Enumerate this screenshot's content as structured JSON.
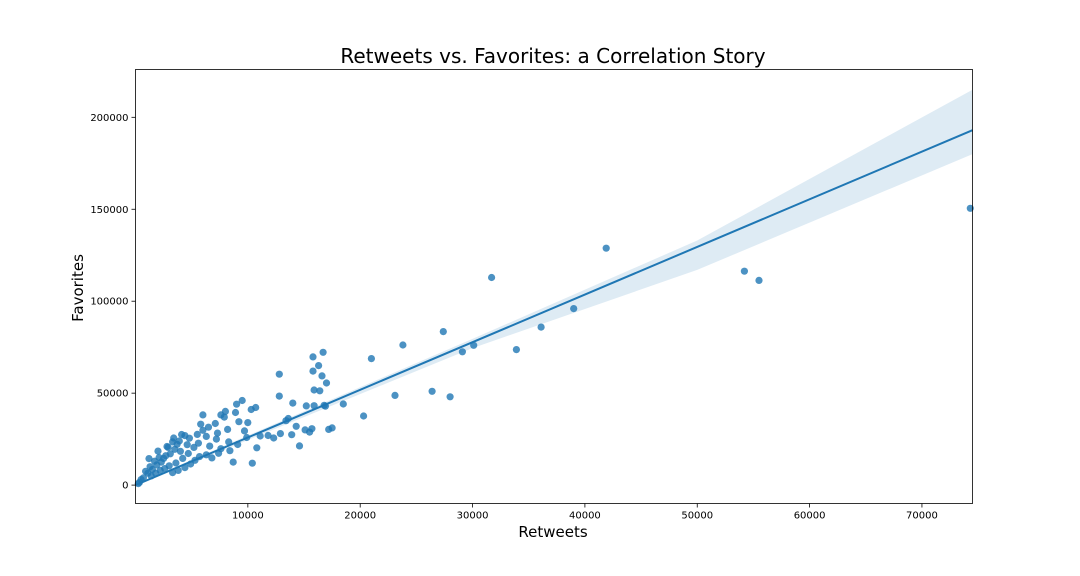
{
  "chart_data": {
    "type": "scatter",
    "title": "Retweets vs. Favorites: a Correlation Story",
    "xlabel": "Retweets",
    "ylabel": "Favorites",
    "xlim": [
      0,
      74500
    ],
    "ylim": [
      -10000,
      226000
    ],
    "xticks": [
      10000,
      20000,
      30000,
      40000,
      50000,
      60000,
      70000
    ],
    "yticks": [
      0,
      50000,
      100000,
      150000,
      200000
    ],
    "grid": false,
    "colors": {
      "points": "#1f77b4",
      "line": "#1f77b4",
      "band": "#1f77b4"
    },
    "regression": {
      "line": [
        [
          0,
          0
        ],
        [
          74500,
          193000
        ]
      ],
      "ci_upper": [
        [
          0,
          500
        ],
        [
          10000,
          27000
        ],
        [
          30000,
          79500
        ],
        [
          50000,
          133000
        ],
        [
          74500,
          215000
        ]
      ],
      "ci_lower": [
        [
          0,
          -500
        ],
        [
          10000,
          24500
        ],
        [
          30000,
          74500
        ],
        [
          50000,
          117000
        ],
        [
          74500,
          180000
        ]
      ]
    },
    "points": [
      [
        74300,
        150500
      ],
      [
        41900,
        128800
      ],
      [
        54200,
        116300
      ],
      [
        55500,
        111300
      ],
      [
        31700,
        112900
      ],
      [
        39000,
        96000
      ],
      [
        36100,
        85900
      ],
      [
        27400,
        83500
      ],
      [
        30100,
        76000
      ],
      [
        29100,
        72500
      ],
      [
        33900,
        73700
      ],
      [
        23800,
        76200
      ],
      [
        21000,
        68800
      ],
      [
        26400,
        51000
      ],
      [
        28000,
        48000
      ],
      [
        23100,
        48800
      ],
      [
        20300,
        37600
      ],
      [
        18500,
        44100
      ],
      [
        17500,
        31100
      ],
      [
        17200,
        30300
      ],
      [
        16700,
        72200
      ],
      [
        15800,
        69700
      ],
      [
        16300,
        65000
      ],
      [
        15800,
        62000
      ],
      [
        16600,
        59400
      ],
      [
        17000,
        55500
      ],
      [
        15900,
        51700
      ],
      [
        16400,
        51300
      ],
      [
        16800,
        43400
      ],
      [
        15900,
        43200
      ],
      [
        16900,
        42900
      ],
      [
        15200,
        43100
      ],
      [
        14000,
        44600
      ],
      [
        12800,
        60300
      ],
      [
        12800,
        48400
      ],
      [
        14600,
        21300
      ],
      [
        15700,
        30700
      ],
      [
        15100,
        30000
      ],
      [
        14300,
        32000
      ],
      [
        15500,
        28800
      ],
      [
        13600,
        36200
      ],
      [
        13400,
        35000
      ],
      [
        13900,
        27400
      ],
      [
        12900,
        28000
      ],
      [
        12300,
        25600
      ],
      [
        11800,
        27000
      ],
      [
        11100,
        26700
      ],
      [
        10700,
        42200
      ],
      [
        10300,
        41100
      ],
      [
        10400,
        11900
      ],
      [
        10800,
        20300
      ],
      [
        9500,
        46000
      ],
      [
        9000,
        44000
      ],
      [
        8900,
        39500
      ],
      [
        10000,
        34000
      ],
      [
        9200,
        34500
      ],
      [
        8700,
        12500
      ],
      [
        8200,
        30300
      ],
      [
        8000,
        40100
      ],
      [
        7600,
        38200
      ],
      [
        7900,
        37000
      ],
      [
        7300,
        28300
      ],
      [
        7100,
        33500
      ],
      [
        7200,
        25000
      ],
      [
        6300,
        26500
      ],
      [
        6500,
        31500
      ],
      [
        6000,
        38200
      ],
      [
        6000,
        29800
      ],
      [
        5800,
        33100
      ],
      [
        5500,
        27600
      ],
      [
        5200,
        20500
      ],
      [
        6300,
        16500
      ],
      [
        5700,
        15500
      ],
      [
        4800,
        25500
      ],
      [
        4600,
        22000
      ],
      [
        4400,
        26900
      ],
      [
        4000,
        18400
      ],
      [
        3900,
        24000
      ],
      [
        3700,
        22200
      ],
      [
        3500,
        19500
      ],
      [
        3300,
        23500
      ],
      [
        3100,
        17000
      ],
      [
        2900,
        20500
      ],
      [
        2700,
        16000
      ],
      [
        2500,
        14500
      ],
      [
        2300,
        12500
      ],
      [
        2100,
        15000
      ],
      [
        1900,
        11000
      ],
      [
        1700,
        13000
      ],
      [
        1500,
        8500
      ],
      [
        1300,
        10000
      ],
      [
        1100,
        6500
      ],
      [
        900,
        7500
      ],
      [
        700,
        4000
      ],
      [
        500,
        3000
      ],
      [
        350,
        1500
      ],
      [
        250,
        800
      ],
      [
        4700,
        17200
      ],
      [
        4200,
        14500
      ],
      [
        3600,
        12000
      ],
      [
        3000,
        10500
      ],
      [
        2600,
        9000
      ],
      [
        2200,
        8000
      ],
      [
        1800,
        6500
      ],
      [
        1400,
        5000
      ],
      [
        5300,
        13500
      ],
      [
        4900,
        11500
      ],
      [
        4400,
        9500
      ],
      [
        3800,
        8000
      ],
      [
        3300,
        6800
      ],
      [
        6800,
        14800
      ],
      [
        7600,
        19800
      ],
      [
        8300,
        23500
      ],
      [
        9100,
        22100
      ],
      [
        9700,
        29500
      ],
      [
        5600,
        22800
      ],
      [
        6600,
        21200
      ],
      [
        7400,
        17300
      ],
      [
        8400,
        18700
      ],
      [
        9900,
        25900
      ],
      [
        2000,
        18500
      ],
      [
        1200,
        14400
      ],
      [
        3400,
        25600
      ],
      [
        4100,
        27500
      ],
      [
        2800,
        21000
      ]
    ]
  }
}
